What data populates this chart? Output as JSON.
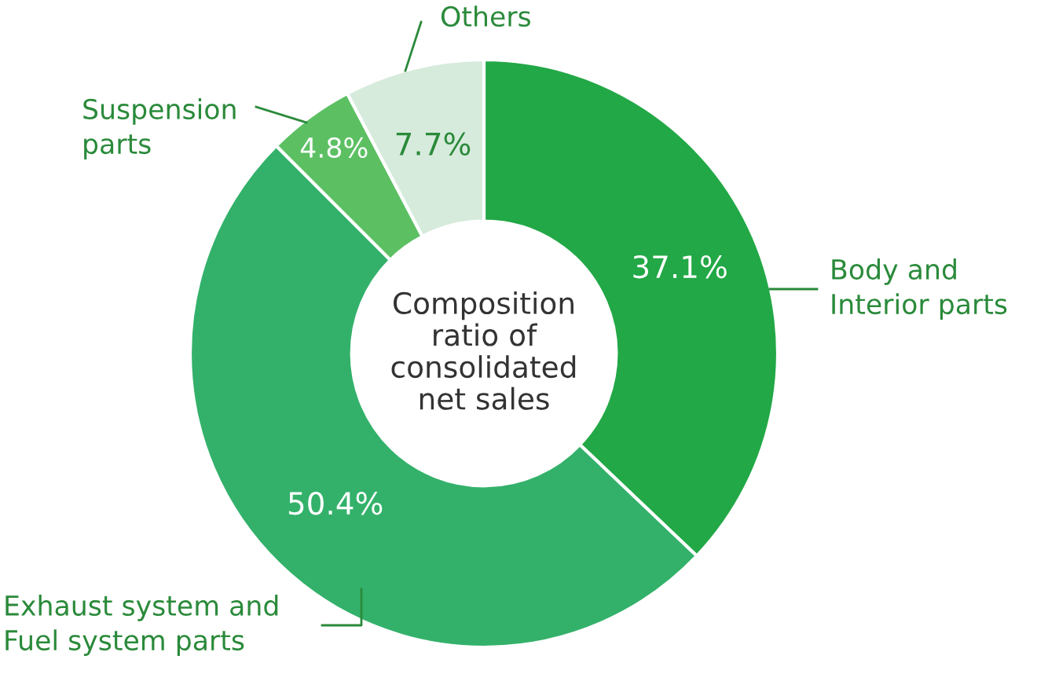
{
  "chart_data": {
    "type": "donut",
    "title": "Composition ratio of consolidated net sales",
    "categories": [
      "Body and Interior parts",
      "Exhaust system and Fuel system parts",
      "Suspension parts",
      "Others"
    ],
    "values": [
      37.1,
      50.4,
      4.8,
      7.7
    ],
    "colors": [
      "#22a846",
      "#33b16a",
      "#5cc063",
      "#d6ebdc"
    ],
    "value_labels": [
      "37.1%",
      "50.4%",
      "4.8%",
      "7.7%"
    ]
  }
}
